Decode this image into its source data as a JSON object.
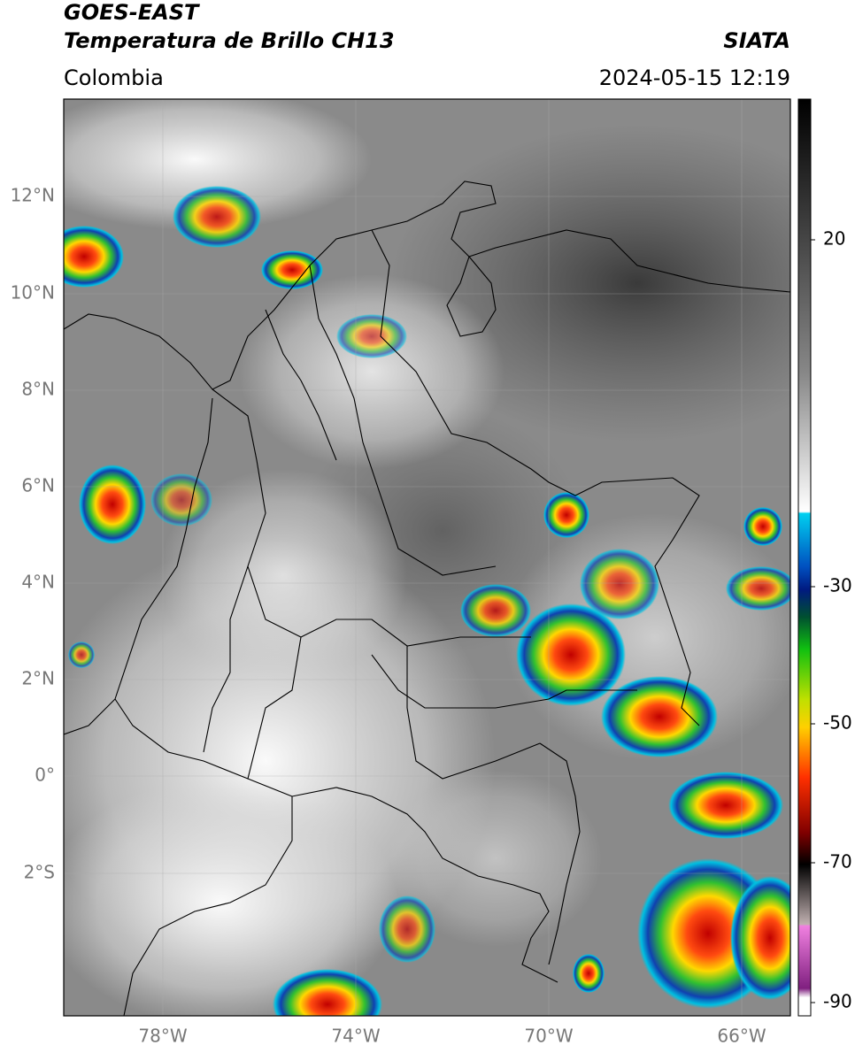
{
  "header": {
    "source": "GOES-EAST",
    "product": "Temperatura de Brillo CH13",
    "agency": "SIATA",
    "region": "Colombia",
    "timestamp": "2024-05-15 12:19"
  },
  "map": {
    "latitude_labels": [
      "12°N",
      "10°N",
      "8°N",
      "6°N",
      "4°N",
      "2°N",
      "0°",
      "2°S"
    ],
    "longitude_labels": [
      "78°W",
      "74°W",
      "70°W",
      "66°W"
    ]
  },
  "colorbar": {
    "tick_labels": [
      "20",
      "-30",
      "-50",
      "-70",
      "-90"
    ]
  }
}
